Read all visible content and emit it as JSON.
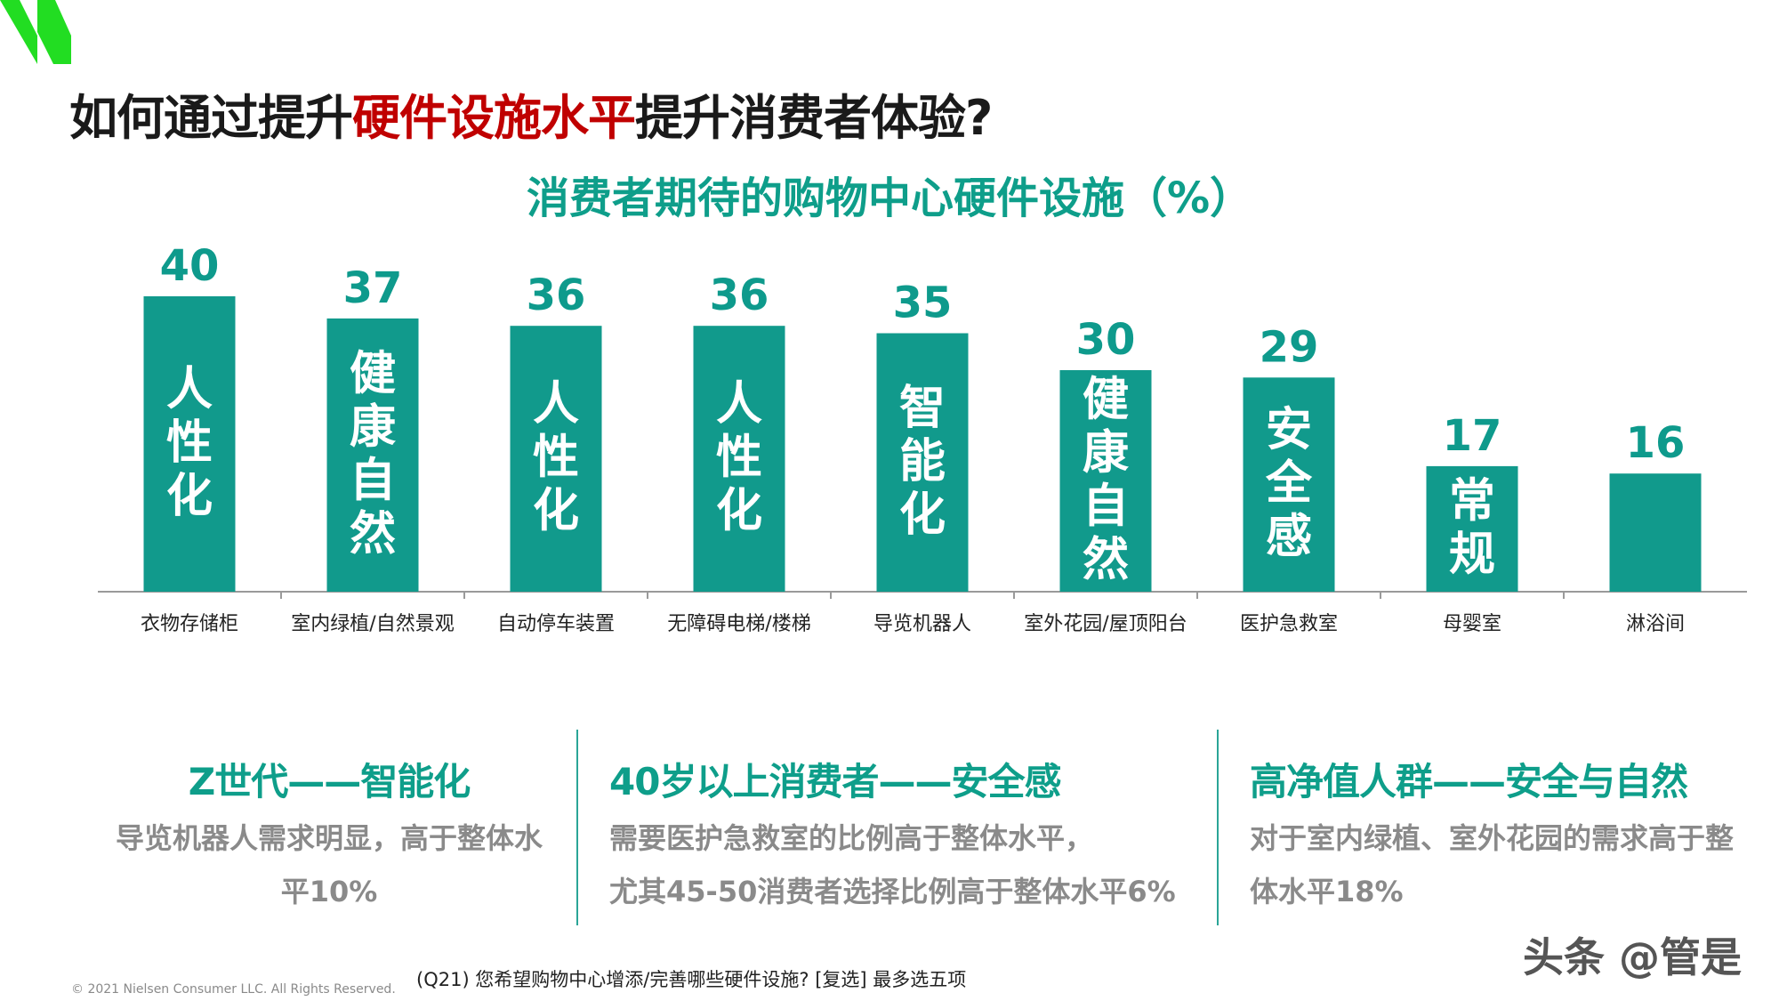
{
  "slide": {
    "title_part1": "如何通过提升",
    "title_highlight": "硬件设施水平",
    "title_part2": "提升消费者体验?",
    "chart_title": "消费者期待的购物中心硬件设施（%）",
    "accent_color": "#0e9e8a",
    "bar_color": "#119a8c",
    "highlight_color": "#c00000",
    "logo_color": "#22dd22"
  },
  "chart_data": {
    "type": "bar",
    "title": "消费者期待的购物中心硬件设施（%）",
    "categories": [
      "衣物存储柜",
      "室内绿植/自然景观",
      "自动停车装置",
      "无障碍电梯/楼梯",
      "导览机器人",
      "室外花园/屋顶阳台",
      "医护急救室",
      "母婴室",
      "淋浴间"
    ],
    "values": [
      40,
      37,
      36,
      36,
      35,
      30,
      29,
      17,
      16
    ],
    "bar_group_labels": [
      "人性化",
      "健康自然",
      "人性化",
      "人性化",
      "智能化",
      "健康自然",
      "安全感",
      "常规",
      ""
    ],
    "ylim": [
      0,
      45
    ],
    "grid": false,
    "xlabel": "",
    "ylabel": ""
  },
  "insights": [
    {
      "title": "Z世代——智能化",
      "lines": [
        "导览机器人需求明显，高于整体水",
        "平10%"
      ]
    },
    {
      "title": "40岁以上消费者——安全感",
      "lines": [
        "需要医护急救室的比例高于整体水平，",
        "尤其45-50消费者选择比例高于整体水平6%"
      ]
    },
    {
      "title": "高净值人群——安全与自然",
      "lines": [
        "对于室内绿植、室外花园的需求高于整",
        "体水平18%"
      ]
    }
  ],
  "footnote": "(Q21) 您希望购物中心增添/完善哪些硬件设施? [复选] 最多选五项",
  "copyright": "© 2021 Nielsen Consumer LLC. All Rights Reserved.",
  "watermark": "头条 @管是"
}
